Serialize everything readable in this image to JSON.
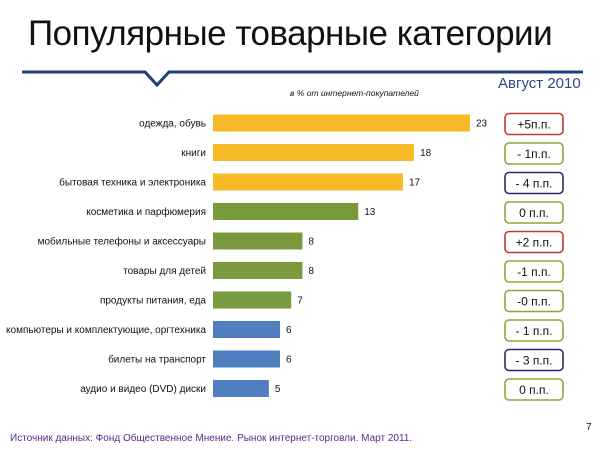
{
  "slide": {
    "title": "Популярные товарные категории",
    "period": "Август 2010",
    "units_note": "в % от интернет-покупателей",
    "source": "Источник данных: Фонд Общественное Мнение. Рынок интернет-торговли. Март 2011.",
    "page_number": "7"
  },
  "colors": {
    "rule": "#1f3f78",
    "yellow": "#f7b928",
    "green": "#789a3c",
    "blue": "#4f7fbf",
    "badge_red": "#c0392b",
    "badge_green": "#8aa83a",
    "badge_navy": "#2c2a66"
  },
  "chart_data": {
    "type": "bar",
    "orientation": "horizontal",
    "categories": [
      "одежда, обувь",
      "книги",
      "бытовая техника и электроника",
      "косметика и парфюмерия",
      "мобильные телефоны и аксессуары",
      "товары для детей",
      "продукты питания, еда",
      "компьютеры и комплектующие, оргтехника",
      "билеты на транспорт",
      "аудио и видео (DVD) диски"
    ],
    "values": [
      23,
      18,
      17,
      13,
      8,
      8,
      7,
      6,
      6,
      5
    ],
    "value_labels": [
      "23",
      "18",
      "17",
      "13",
      "8",
      "8",
      "7",
      "6",
      "6",
      "5"
    ],
    "bar_colors": [
      "yellow",
      "yellow",
      "yellow",
      "green",
      "green",
      "green",
      "green",
      "blue",
      "blue",
      "blue"
    ],
    "changes": [
      "+5п.п.",
      "- 1п.п.",
      "- 4 п.п.",
      "0 п.п.",
      "+2 п.п.",
      "-1 п.п.",
      "-0 п.п.",
      "- 1 п.п.",
      "- 3 п.п.",
      "0 п.п."
    ],
    "change_colors": [
      "badge_red",
      "badge_green",
      "badge_navy",
      "badge_green",
      "badge_red",
      "badge_green",
      "badge_green",
      "badge_green",
      "badge_navy",
      "badge_green"
    ],
    "xlim": [
      0,
      23
    ],
    "title": "",
    "xlabel": "",
    "ylabel": "",
    "grid": false,
    "legend": "none"
  }
}
